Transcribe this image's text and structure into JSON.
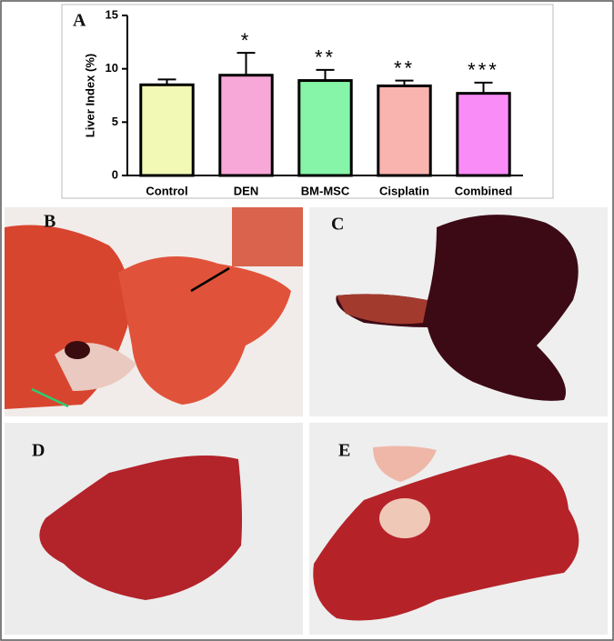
{
  "chart_data": {
    "type": "bar",
    "title": "A",
    "ylabel": "Liver Index (%)",
    "categories": [
      "Control",
      "DEN",
      "BM-MSC",
      "Cisplatin",
      "Combined"
    ],
    "values": [
      8.5,
      9.4,
      8.9,
      8.4,
      7.7
    ],
    "errors": [
      0.5,
      2.1,
      1.0,
      0.5,
      1.0
    ],
    "annotations": [
      null,
      "*",
      "**",
      "**",
      "***"
    ],
    "colors": [
      "#f2f9b5",
      "#f7a8d8",
      "#86f5a8",
      "#f9b4b0",
      "#f98cf7"
    ],
    "ylim": [
      0,
      15
    ],
    "yticks": [
      0,
      5,
      10,
      15
    ],
    "grid": false
  },
  "panels": [
    {
      "label": "B"
    },
    {
      "label": "C"
    },
    {
      "label": "D"
    },
    {
      "label": "E"
    }
  ]
}
